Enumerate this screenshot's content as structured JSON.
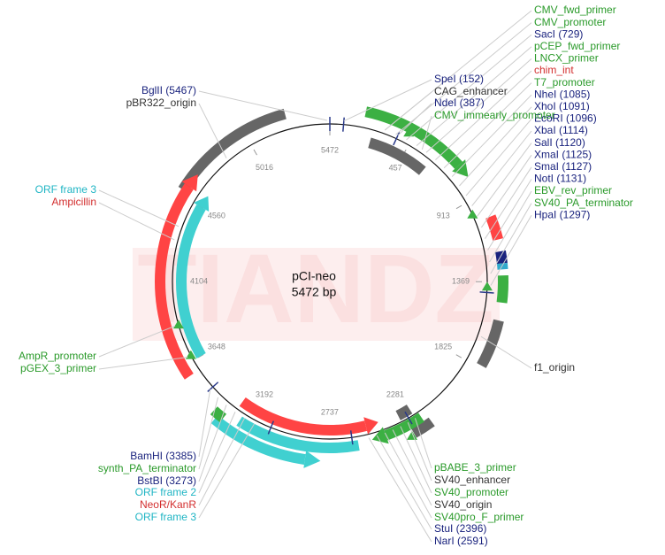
{
  "map": {
    "name": "pCI-neo",
    "length": "5472 bp",
    "ticks": [
      5472,
      457,
      913,
      1369,
      1825,
      2281,
      2737,
      3192,
      3648,
      4104,
      4560,
      5016
    ],
    "watermark": "TIANDZ",
    "labels": [
      {
        "text": "CMV_fwd_primer",
        "color": "#2a9a2a"
      },
      {
        "text": "CMV_promoter",
        "color": "#2a9a2a"
      },
      {
        "text": "SacI (729)",
        "color": "#1a237e"
      },
      {
        "text": "pCEP_fwd_primer",
        "color": "#2a9a2a"
      },
      {
        "text": "LNCX_primer",
        "color": "#2a9a2a"
      },
      {
        "text": "chim_int",
        "color": "#d32f2f"
      },
      {
        "text": "T7_promoter",
        "color": "#2a9a2a"
      },
      {
        "text": "NheI (1085)",
        "color": "#1a237e"
      },
      {
        "text": "XhoI (1091)",
        "color": "#1a237e"
      },
      {
        "text": "EcoRI (1096)",
        "color": "#1a237e"
      },
      {
        "text": "XbaI (1114)",
        "color": "#1a237e"
      },
      {
        "text": "SalI (1120)",
        "color": "#1a237e"
      },
      {
        "text": "XmaI (1125)",
        "color": "#1a237e"
      },
      {
        "text": "SmaI (1127)",
        "color": "#1a237e"
      },
      {
        "text": "NotI (1131)",
        "color": "#1a237e"
      },
      {
        "text": "EBV_rev_primer",
        "color": "#2a9a2a"
      },
      {
        "text": "SV40_PA_terminator",
        "color": "#2a9a2a"
      },
      {
        "text": "HpaI (1297)",
        "color": "#1a237e"
      },
      {
        "text": "SpeI (152)",
        "color": "#1a237e"
      },
      {
        "text": "CAG_enhancer",
        "color": "#333333"
      },
      {
        "text": "NdeI (387)",
        "color": "#1a237e"
      },
      {
        "text": "CMV_immearly_promoter",
        "color": "#2a9a2a"
      },
      {
        "text": "BglII (5467)",
        "color": "#1a237e"
      },
      {
        "text": "pBR322_origin",
        "color": "#333333"
      },
      {
        "text": "ORF frame 3",
        "color": "#1fb5c4"
      },
      {
        "text": "Ampicillin",
        "color": "#d32f2f"
      },
      {
        "text": "AmpR_promoter",
        "color": "#2a9a2a"
      },
      {
        "text": "pGEX_3_primer",
        "color": "#2a9a2a"
      },
      {
        "text": "f1_origin",
        "color": "#333333"
      },
      {
        "text": "BamHI (3385)",
        "color": "#1a237e"
      },
      {
        "text": "synth_PA_terminator",
        "color": "#2a9a2a"
      },
      {
        "text": "BstBI (3273)",
        "color": "#1a237e"
      },
      {
        "text": "ORF frame 2",
        "color": "#1fb5c4"
      },
      {
        "text": "NeoR/KanR",
        "color": "#d32f2f"
      },
      {
        "text": "ORF frame 3",
        "color": "#1fb5c4"
      },
      {
        "text": "pBABE_3_primer",
        "color": "#2a9a2a"
      },
      {
        "text": "SV40_enhancer",
        "color": "#333333"
      },
      {
        "text": "SV40_promoter",
        "color": "#2a9a2a"
      },
      {
        "text": "SV40_origin",
        "color": "#333333"
      },
      {
        "text": "SV40pro_F_primer",
        "color": "#2a9a2a"
      },
      {
        "text": "StuI (2396)",
        "color": "#1a237e"
      },
      {
        "text": "NarI (2591)",
        "color": "#1a237e"
      }
    ]
  }
}
